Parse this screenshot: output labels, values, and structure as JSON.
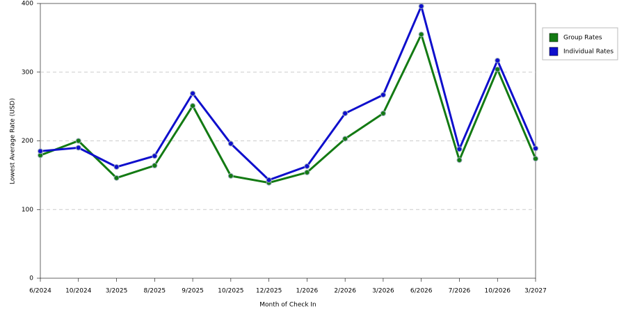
{
  "chart_data": {
    "type": "line",
    "x_label": "Month of Check In",
    "y_label": "Lowest Average Rate (USD)",
    "categories": [
      "6/2024",
      "10/2024",
      "3/2025",
      "8/2025",
      "9/2025",
      "10/2025",
      "12/2025",
      "1/2026",
      "2/2026",
      "3/2026",
      "6/2026",
      "7/2026",
      "10/2026",
      "3/2027"
    ],
    "series": [
      {
        "name": "Group Rates",
        "color": "#137a13",
        "values": [
          179,
          200,
          146,
          164,
          251,
          149,
          139,
          154,
          203,
          240,
          355,
          172,
          304,
          174
        ]
      },
      {
        "name": "Individual Rates",
        "color": "#0f0fcc",
        "values": [
          185,
          190,
          162,
          178,
          269,
          196,
          143,
          163,
          240,
          267,
          396,
          188,
          317,
          189
        ]
      }
    ],
    "ylim": [
      0,
      400
    ],
    "yticks": [
      0,
      100,
      200,
      300,
      400
    ],
    "grid": true,
    "legend": "right"
  }
}
